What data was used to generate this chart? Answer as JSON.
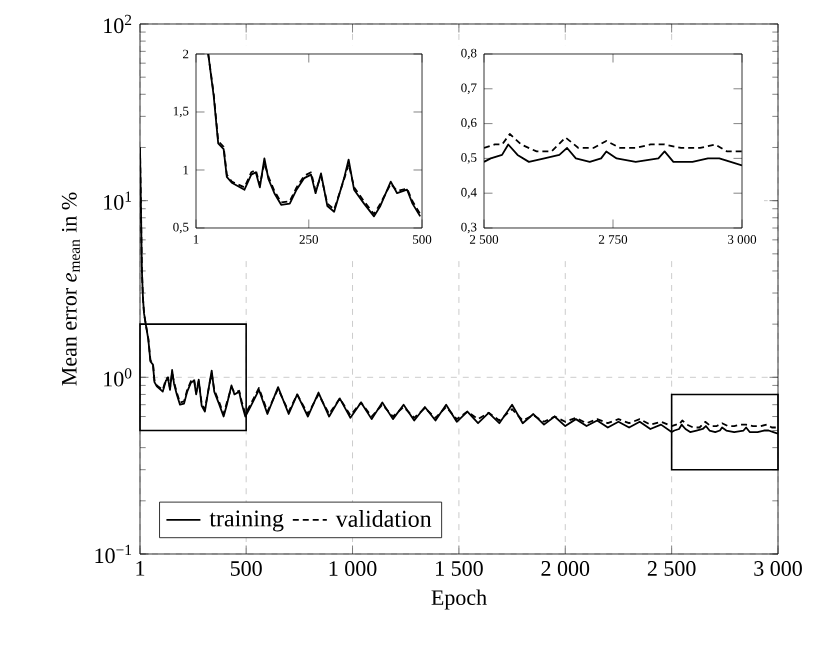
{
  "chart_data": [
    {
      "type": "line",
      "xlabel": "Epoch",
      "ylabel": "Mean error *e*$_{mean}$ in %",
      "log": "y",
      "grid": true,
      "legend": "bottom left",
      "marker": "none",
      "xlim": [
        1,
        3000
      ],
      "xticks": [
        1,
        500,
        {
          "value": 1000,
          "label": "1 000"
        },
        {
          "value": 1500,
          "label": "1 500"
        },
        {
          "value": 2000,
          "label": "2 000"
        },
        {
          "value": 2500,
          "label": "2 500"
        },
        {
          "value": 3000,
          "label": "3 000"
        }
      ],
      "ylim": [
        0.1,
        100
      ],
      "yticks": [
        {
          "value": 0.1,
          "label": "10$^{−1}$"
        },
        {
          "value": 1,
          "label": "10$^{0}$"
        },
        {
          "value": 10,
          "label": "10$^{1}$"
        },
        {
          "value": 100,
          "label": "10$^{2}$"
        }
      ],
      "series": [
        {
          "name": "training",
          "color": "#000000",
          "line_style": "solid",
          "x": [
            1,
            5,
            10,
            15,
            20,
            28,
            40,
            50,
            62,
            69,
            80,
            108,
            123,
            133,
            142,
            152,
            161,
            174,
            189,
            208,
            223,
            240,
            255,
            265,
            277,
            291,
            306,
            328,
            338,
            350,
            372,
            394,
            408,
            431,
            445,
            467,
            479,
            496,
            520,
            560,
            600,
            650,
            700,
            740,
            790,
            840,
            890,
            940,
            990,
            1040,
            1090,
            1140,
            1190,
            1240,
            1290,
            1340,
            1390,
            1440,
            1490,
            1540,
            1590,
            1640,
            1690,
            1750,
            1800,
            1850,
            1900,
            1950,
            2000,
            2050,
            2100,
            2150,
            2200,
            2250,
            2300,
            2350,
            2400,
            2450,
            2500,
            2513,
            2535,
            2547,
            2565,
            2587,
            2617,
            2646,
            2661,
            2678,
            2705,
            2727,
            2737,
            2757,
            2794,
            2838,
            2850,
            2867,
            2904,
            2934,
            2956,
            2978,
            3000
          ],
          "values": [
            20,
            10,
            4,
            2.8,
            2.3,
            2.0,
            1.64,
            1.23,
            1.18,
            0.94,
            0.89,
            0.83,
            0.96,
            0.98,
            0.85,
            1.1,
            0.92,
            0.8,
            0.7,
            0.71,
            0.83,
            0.93,
            0.96,
            0.8,
            0.97,
            0.69,
            0.64,
            0.93,
            1.09,
            0.83,
            0.71,
            0.6,
            0.69,
            0.9,
            0.8,
            0.83,
            0.71,
            0.6,
            0.68,
            0.85,
            0.62,
            0.88,
            0.62,
            0.8,
            0.6,
            0.82,
            0.6,
            0.76,
            0.59,
            0.72,
            0.58,
            0.72,
            0.58,
            0.7,
            0.57,
            0.68,
            0.57,
            0.7,
            0.56,
            0.64,
            0.55,
            0.63,
            0.55,
            0.7,
            0.55,
            0.62,
            0.54,
            0.6,
            0.53,
            0.58,
            0.53,
            0.57,
            0.52,
            0.56,
            0.52,
            0.56,
            0.51,
            0.54,
            0.49,
            0.5,
            0.51,
            0.54,
            0.51,
            0.49,
            0.5,
            0.51,
            0.53,
            0.5,
            0.49,
            0.5,
            0.52,
            0.5,
            0.49,
            0.5,
            0.52,
            0.49,
            0.49,
            0.5,
            0.5,
            0.49,
            0.48
          ]
        },
        {
          "name": "validation",
          "color": "#000000",
          "line_style": "dashed",
          "x": [
            1,
            5,
            10,
            15,
            20,
            28,
            40,
            50,
            62,
            69,
            80,
            108,
            123,
            133,
            142,
            152,
            161,
            174,
            189,
            208,
            223,
            240,
            255,
            265,
            277,
            291,
            306,
            328,
            338,
            350,
            372,
            394,
            408,
            431,
            445,
            467,
            479,
            496,
            520,
            560,
            600,
            650,
            700,
            740,
            790,
            840,
            890,
            940,
            990,
            1040,
            1090,
            1140,
            1190,
            1240,
            1290,
            1340,
            1390,
            1440,
            1490,
            1540,
            1590,
            1640,
            1690,
            1750,
            1800,
            1850,
            1900,
            1950,
            2000,
            2050,
            2100,
            2150,
            2200,
            2250,
            2300,
            2350,
            2400,
            2450,
            2500,
            2521,
            2535,
            2550,
            2572,
            2602,
            2631,
            2658,
            2683,
            2712,
            2737,
            2764,
            2794,
            2823,
            2850,
            2882,
            2919,
            2948,
            2971,
            3000
          ],
          "values": [
            20,
            10,
            4,
            2.8,
            2.3,
            2.0,
            1.66,
            1.25,
            1.2,
            0.96,
            0.9,
            0.85,
            0.98,
            1.0,
            0.87,
            1.06,
            0.94,
            0.82,
            0.72,
            0.73,
            0.85,
            0.95,
            0.98,
            0.82,
            0.95,
            0.71,
            0.66,
            0.92,
            1.05,
            0.85,
            0.73,
            0.62,
            0.71,
            0.88,
            0.82,
            0.84,
            0.73,
            0.62,
            0.7,
            0.87,
            0.64,
            0.86,
            0.64,
            0.8,
            0.62,
            0.8,
            0.62,
            0.76,
            0.61,
            0.72,
            0.6,
            0.7,
            0.6,
            0.68,
            0.59,
            0.67,
            0.59,
            0.68,
            0.58,
            0.64,
            0.58,
            0.63,
            0.57,
            0.66,
            0.57,
            0.61,
            0.56,
            0.6,
            0.56,
            0.59,
            0.55,
            0.58,
            0.55,
            0.58,
            0.55,
            0.58,
            0.54,
            0.56,
            0.53,
            0.54,
            0.54,
            0.57,
            0.54,
            0.52,
            0.52,
            0.56,
            0.53,
            0.53,
            0.55,
            0.53,
            0.53,
            0.54,
            0.54,
            0.53,
            0.53,
            0.54,
            0.52,
            0.52
          ]
        }
      ]
    },
    {
      "type": "line",
      "marker": "none",
      "xlim": [
        1,
        500
      ],
      "xticks": [
        1,
        250,
        500
      ],
      "ylim": [
        0.5,
        2
      ],
      "yticks": [
        {
          "value": 0.5,
          "label": "0,5"
        },
        1,
        {
          "value": 1.5,
          "label": "1,5"
        },
        2
      ],
      "series": [
        {
          "color": "#000000",
          "line_style": "solid",
          "x": [
            28,
            40,
            50,
            62,
            69,
            80,
            108,
            123,
            133,
            142,
            152,
            161,
            174,
            189,
            208,
            223,
            240,
            255,
            265,
            277,
            291,
            306,
            328,
            338,
            350,
            372,
            394,
            408,
            431,
            445,
            467,
            479,
            496
          ],
          "values": [
            2.0,
            1.64,
            1.23,
            1.18,
            0.94,
            0.89,
            0.83,
            0.96,
            0.98,
            0.85,
            1.1,
            0.92,
            0.8,
            0.7,
            0.71,
            0.83,
            0.93,
            0.96,
            0.8,
            0.97,
            0.69,
            0.64,
            0.93,
            1.09,
            0.83,
            0.71,
            0.6,
            0.69,
            0.9,
            0.8,
            0.83,
            0.71,
            0.6
          ]
        },
        {
          "color": "#000000",
          "line_style": "dashed",
          "x": [
            28,
            40,
            50,
            62,
            69,
            80,
            108,
            123,
            133,
            142,
            152,
            161,
            174,
            189,
            208,
            223,
            240,
            255,
            265,
            277,
            291,
            306,
            328,
            338,
            350,
            372,
            394,
            408,
            431,
            445,
            467,
            479,
            496
          ],
          "values": [
            2.0,
            1.66,
            1.25,
            1.2,
            0.96,
            0.9,
            0.85,
            0.98,
            1.0,
            0.87,
            1.06,
            0.94,
            0.82,
            0.72,
            0.73,
            0.85,
            0.95,
            0.98,
            0.82,
            0.95,
            0.71,
            0.66,
            0.92,
            1.05,
            0.85,
            0.73,
            0.62,
            0.71,
            0.88,
            0.82,
            0.84,
            0.73,
            0.62
          ]
        }
      ]
    },
    {
      "type": "line",
      "marker": "none",
      "xlim": [
        2500,
        3000
      ],
      "xticks": [
        {
          "value": 2500,
          "label": "2 500"
        },
        {
          "value": 2750,
          "label": "2 750"
        },
        {
          "value": 3000,
          "label": "3 000"
        }
      ],
      "ylim": [
        0.3,
        0.8
      ],
      "yticks": [
        {
          "value": 0.3,
          "label": "0,3"
        },
        {
          "value": 0.4,
          "label": "0,4"
        },
        {
          "value": 0.5,
          "label": "0,5"
        },
        {
          "value": 0.6,
          "label": "0,6"
        },
        {
          "value": 0.7,
          "label": "0,7"
        },
        {
          "value": 0.8,
          "label": "0,8"
        }
      ],
      "series": [
        {
          "color": "#000000",
          "line_style": "solid",
          "x": [
            2500,
            2513,
            2535,
            2547,
            2565,
            2587,
            2617,
            2646,
            2661,
            2678,
            2705,
            2727,
            2737,
            2757,
            2794,
            2838,
            2850,
            2867,
            2904,
            2934,
            2956,
            2978,
            3000
          ],
          "values": [
            0.49,
            0.5,
            0.51,
            0.54,
            0.51,
            0.49,
            0.5,
            0.51,
            0.53,
            0.5,
            0.49,
            0.5,
            0.52,
            0.5,
            0.49,
            0.5,
            0.52,
            0.49,
            0.49,
            0.5,
            0.5,
            0.49,
            0.48
          ]
        },
        {
          "color": "#000000",
          "line_style": "dashed",
          "x": [
            2500,
            2521,
            2535,
            2550,
            2572,
            2602,
            2631,
            2658,
            2683,
            2712,
            2737,
            2764,
            2794,
            2823,
            2850,
            2882,
            2919,
            2948,
            2971,
            3000
          ],
          "values": [
            0.53,
            0.54,
            0.54,
            0.57,
            0.54,
            0.52,
            0.52,
            0.56,
            0.53,
            0.53,
            0.55,
            0.53,
            0.53,
            0.54,
            0.54,
            0.53,
            0.53,
            0.54,
            0.52,
            0.52
          ]
        }
      ]
    }
  ]
}
